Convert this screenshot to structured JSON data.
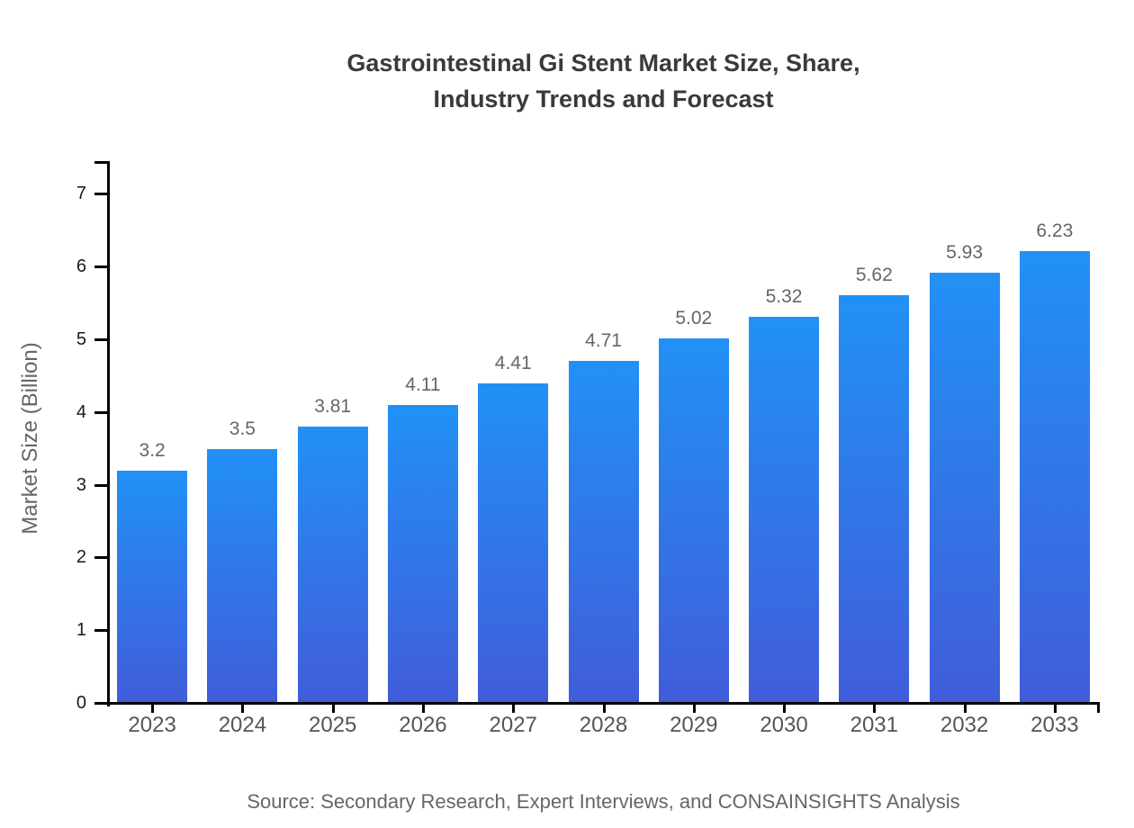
{
  "chart_data": {
    "type": "bar",
    "title_line1": "Gastrointestinal Gi Stent Market Size, Share,",
    "title_line2": "Industry Trends and Forecast",
    "ylabel": "Market Size (Billion)",
    "xlabel": "",
    "categories": [
      "2023",
      "2024",
      "2025",
      "2026",
      "2027",
      "2028",
      "2029",
      "2030",
      "2031",
      "2032",
      "2033"
    ],
    "values": [
      3.2,
      3.5,
      3.81,
      4.11,
      4.41,
      4.71,
      5.02,
      5.32,
      5.62,
      5.93,
      6.23
    ],
    "value_labels": [
      "3.2",
      "3.5",
      "3.81",
      "4.11",
      "4.41",
      "4.71",
      "5.02",
      "5.32",
      "5.62",
      "5.93",
      "6.23"
    ],
    "y_ticks": [
      0,
      1,
      2,
      3,
      4,
      5,
      6,
      7
    ],
    "ylim": [
      0,
      7.45
    ],
    "grid": false,
    "legend_position": "none",
    "source": "Source: Secondary Research, Expert Interviews, and CONSAINSIGHTS Analysis"
  },
  "colors": {
    "bar_gradient_top": "#2191F5",
    "bar_gradient_bottom": "#415CD9",
    "axis": "#000000",
    "title_text": "#3a3a3a",
    "value_label_text": "#666666",
    "x_label_text": "#555555",
    "y_label_text": "#1a1a1a",
    "source_text": "#666666",
    "background": "#ffffff"
  }
}
